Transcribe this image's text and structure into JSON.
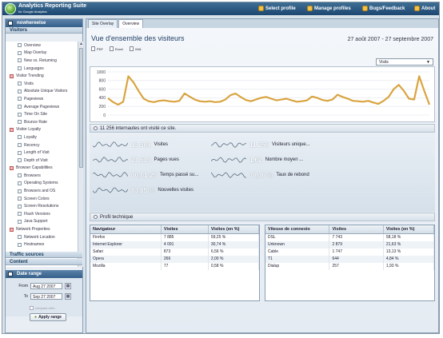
{
  "app": {
    "title": "Analytics Reporting Suite",
    "subtitle": "for Google Analytics"
  },
  "topnav": [
    {
      "label": "Select profile",
      "icon": "profile-icon"
    },
    {
      "label": "Manage profiles",
      "icon": "manage-icon"
    },
    {
      "label": "Bugs/Feedback",
      "icon": "feedback-icon"
    },
    {
      "label": "About",
      "icon": "about-icon"
    }
  ],
  "sidebar": {
    "profile": "nowhereelse",
    "section_visitors": "Visitors",
    "items": [
      {
        "label": "Overview",
        "level": 1
      },
      {
        "label": "Map Overlay",
        "level": 1
      },
      {
        "label": "New vs. Returning",
        "level": 1
      },
      {
        "label": "Languages",
        "level": 1
      },
      {
        "label": "Visitor Trending",
        "level": 0
      },
      {
        "label": "Visits",
        "level": 1
      },
      {
        "label": "Absolute Unique Visitors",
        "level": 1
      },
      {
        "label": "Pageviews",
        "level": 1
      },
      {
        "label": "Average Pageviews",
        "level": 1
      },
      {
        "label": "Time On Site",
        "level": 1
      },
      {
        "label": "Bounce Rate",
        "level": 1
      },
      {
        "label": "Visitor Loyalty",
        "level": 0
      },
      {
        "label": "Loyalty",
        "level": 1
      },
      {
        "label": "Recency",
        "level": 1
      },
      {
        "label": "Length of Visit",
        "level": 1
      },
      {
        "label": "Depth of Visit",
        "level": 1
      },
      {
        "label": "Browser Capabilities",
        "level": 0
      },
      {
        "label": "Browsers",
        "level": 1
      },
      {
        "label": "Operating Systems",
        "level": 1
      },
      {
        "label": "Browsers and OS",
        "level": 1
      },
      {
        "label": "Screen Colors",
        "level": 1
      },
      {
        "label": "Screen Resolutions",
        "level": 1
      },
      {
        "label": "Flash Versions",
        "level": 1
      },
      {
        "label": "Java Support",
        "level": 1
      },
      {
        "label": "Network Properties",
        "level": 0
      },
      {
        "label": "Network Location",
        "level": 1
      },
      {
        "label": "Hostnames",
        "level": 1
      }
    ],
    "section_traffic": "Traffic sources",
    "section_content": "Content",
    "date_range": {
      "title": "Date range",
      "from_label": "From",
      "from_value": "Aug 27 2007",
      "to_label": "To",
      "to_value": "Sep 27 2007",
      "compare_label": "compare with...",
      "apply_label": "Apply range"
    }
  },
  "main": {
    "tabs": [
      "Site Overlay",
      "Overview"
    ],
    "active_tab": 1,
    "title": "Vue d'ensemble des visiteurs",
    "date_range": "27 août 2007 - 27 septembre 2007",
    "exports": [
      "PDF",
      "Excel",
      "XML"
    ],
    "metric_selected": "Visits",
    "summary_header": "11 256 internautes ont visité ce site.",
    "metrics": [
      {
        "value": "13 309",
        "label": "Visites"
      },
      {
        "value": "11 256",
        "label": "Visiteurs unique..."
      },
      {
        "value": "21 613",
        "label": "Pages vues"
      },
      {
        "value": "1,62",
        "label": "Nombre moyen ..."
      },
      {
        "value": "00:01:25",
        "label": "Temps passé su..."
      },
      {
        "value": "78,36 %",
        "label": "Taux de rebond"
      },
      {
        "value": "83,85 %",
        "label": "Nouvelles visites"
      }
    ],
    "tech_header": "Profil technique",
    "browser_table": {
      "headers": [
        "Navigateur",
        "Visites",
        "Visites (en %)"
      ],
      "rows": [
        [
          "Firefox",
          "7 885",
          "59,25 %"
        ],
        [
          "Internet Explorer",
          "4 091",
          "30,74 %"
        ],
        [
          "Safari",
          "873",
          "6,56 %"
        ],
        [
          "Opera",
          "266",
          "2,00 %"
        ],
        [
          "Mozilla",
          "77",
          "0,58 %"
        ]
      ]
    },
    "connection_table": {
      "headers": [
        "Vitesse de connexio",
        "Visites",
        "Visites (en %)"
      ],
      "rows": [
        [
          "DSL",
          "7 743",
          "58,18 %"
        ],
        [
          "Unknown",
          "2 879",
          "21,63 %"
        ],
        [
          "Cable",
          "1 747",
          "13,13 %"
        ],
        [
          "T1",
          "644",
          "4,84 %"
        ],
        [
          "Dialup",
          "257",
          "1,93 %"
        ]
      ]
    }
  },
  "chart_data": {
    "type": "line",
    "y_ticks": [
      "1000",
      "800",
      "600",
      "400",
      "200",
      "0"
    ],
    "ylim": [
      0,
      1000
    ],
    "series": [
      {
        "values": [
          390,
          300,
          240,
          310,
          900,
          760,
          560,
          380,
          320,
          300,
          330,
          340,
          320,
          310,
          330,
          500,
          430,
          360,
          320,
          310,
          320,
          300,
          310,
          360,
          460,
          500,
          420,
          350,
          320,
          360,
          400,
          420,
          380,
          340,
          360,
          380,
          340,
          310,
          320,
          340,
          430,
          400,
          350,
          330,
          360,
          470,
          420,
          380,
          330,
          320,
          310,
          330,
          290,
          260,
          330,
          420,
          600,
          700,
          560,
          380,
          360,
          900,
          560,
          240
        ]
      }
    ],
    "color": "#d9a441"
  }
}
